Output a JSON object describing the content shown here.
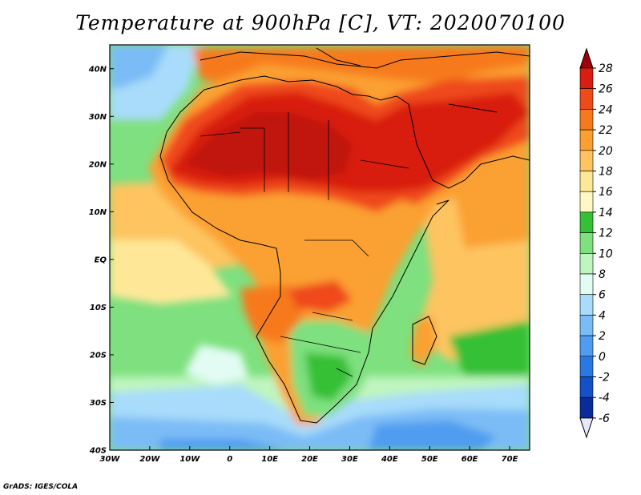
{
  "title": "Temperature at 900hPa [C], VT: 2020070100",
  "credit": "GrADS: IGES/COLA",
  "map": {
    "lon_ticks": [
      "30W",
      "20W",
      "10W",
      "0",
      "10E",
      "20E",
      "30E",
      "40E",
      "50E",
      "60E",
      "70E"
    ],
    "lat_ticks": [
      "40N",
      "30N",
      "20N",
      "10N",
      "EQ",
      "10S",
      "20S",
      "30S",
      "40S"
    ],
    "lon_range": [
      -30,
      75
    ],
    "lat_range": [
      -40,
      45
    ]
  },
  "colorbar": {
    "levels": [
      "28",
      "26",
      "24",
      "22",
      "20",
      "18",
      "16",
      "14",
      "12",
      "10",
      "8",
      "6",
      "4",
      "2",
      "0",
      "-2",
      "-4",
      "-6"
    ],
    "colors": [
      "#a0000a",
      "#d81e10",
      "#ef4a1a",
      "#f67a1c",
      "#fba030",
      "#fdc460",
      "#fee898",
      "#fff8c4",
      "#36c036",
      "#7ee07e",
      "#bff5bf",
      "#e2fcf4",
      "#a8dcfa",
      "#7cbcf6",
      "#509cf0",
      "#2a78e2",
      "#1450c6",
      "#0a2c98",
      "#061668"
    ]
  },
  "colors": {
    "land_hot": "#d81e10",
    "ocean_cool": "#7cbcf6",
    "ocean_mid": "#36c036"
  }
}
